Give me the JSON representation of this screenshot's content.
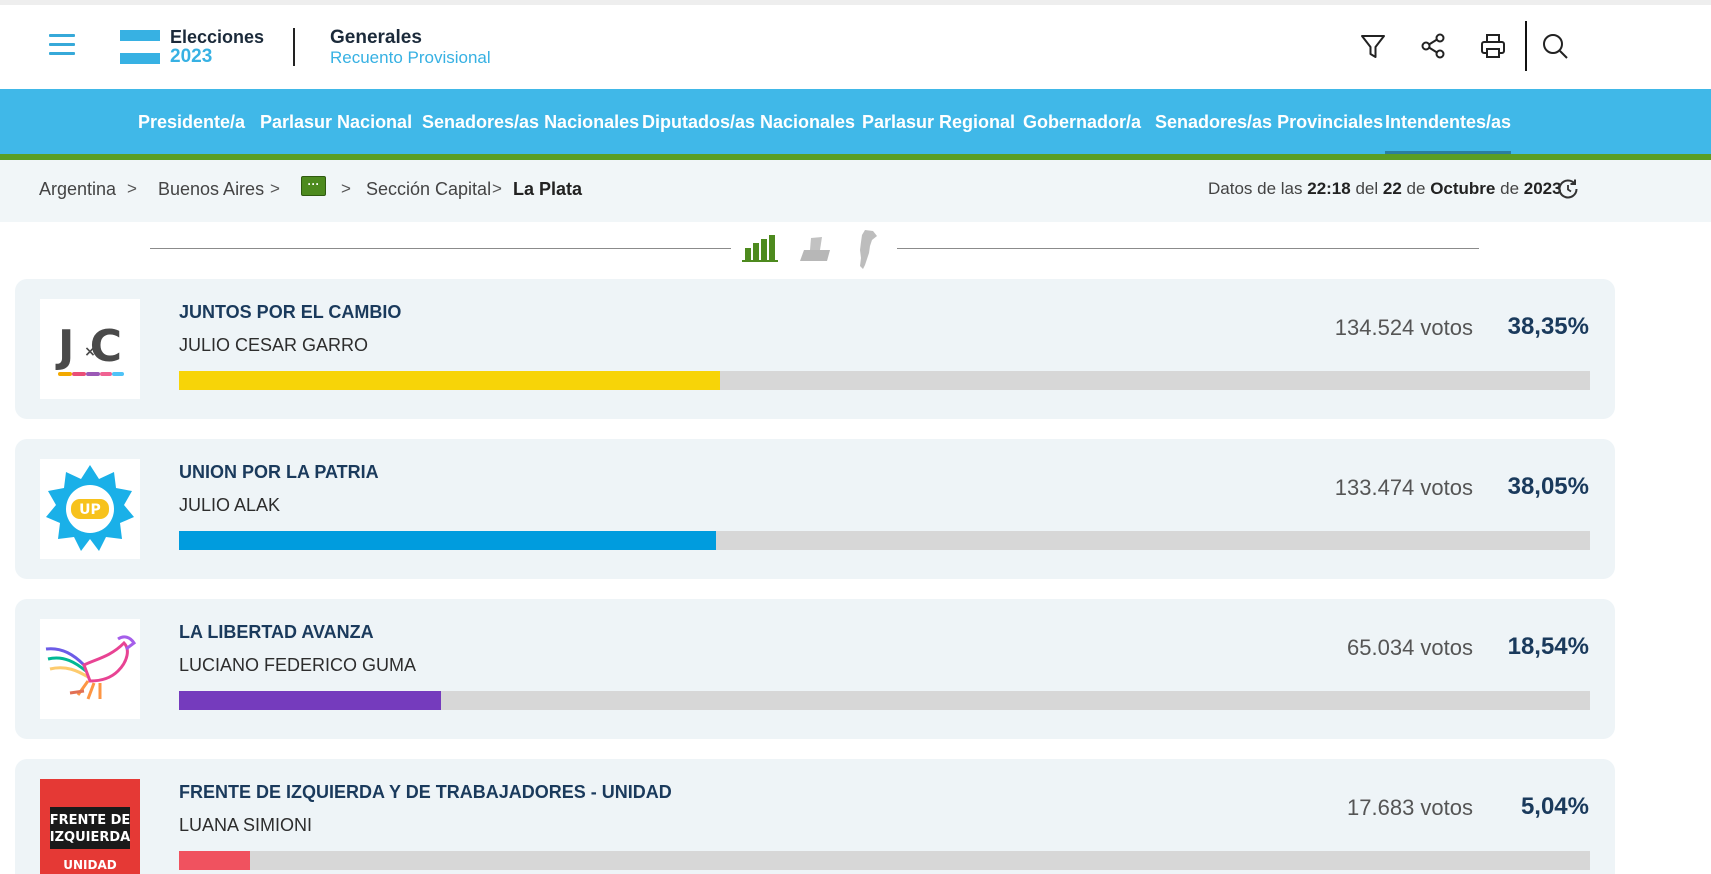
{
  "header": {
    "brand_title": "Elecciones",
    "brand_year": "2023",
    "section_title": "Generales",
    "section_subtitle": "Recuento Provisional",
    "icons": [
      "menu-icon",
      "filter-icon",
      "share-icon",
      "print-icon",
      "search-icon"
    ],
    "accent_color": "#37b1e3"
  },
  "nav": {
    "items": [
      {
        "label": "Presidente/a",
        "active": false
      },
      {
        "label": "Parlasur Nacional",
        "active": false
      },
      {
        "label": "Senadores/as Nacionales",
        "active": false
      },
      {
        "label": "Diputados/as Nacionales",
        "active": false
      },
      {
        "label": "Parlasur Regional",
        "active": false
      },
      {
        "label": "Gobernador/a",
        "active": false
      },
      {
        "label": "Senadores/as Provinciales",
        "active": false
      },
      {
        "label": "Intendentes/as",
        "active": true
      }
    ],
    "background_color": "#40b8e8",
    "underline_color": "#5a9e24"
  },
  "breadcrumb": {
    "items": [
      "Argentina",
      "Buenos Aires",
      "Sección Capital",
      "La Plata"
    ],
    "separator": ">",
    "more_label": "···"
  },
  "updated": {
    "prefix": "Datos de las",
    "time": "22:18",
    "del": "del",
    "day": "22",
    "de1": "de",
    "month": "Octubre",
    "de2": "de",
    "year": "2023"
  },
  "view_switcher": {
    "icons": [
      "bar-chart-icon",
      "ballot-box-icon",
      "argentina-map-icon"
    ],
    "active": "bar-chart-icon"
  },
  "results": [
    {
      "party": "JUNTOS POR EL CAMBIO",
      "candidate": "JULIO CESAR GARRO",
      "votes": "134.524 votos",
      "percent": "38,35%",
      "share": 38.35,
      "color": "#f7d408",
      "logo": "jxc-logo"
    },
    {
      "party": "UNION POR LA PATRIA",
      "candidate": "JULIO ALAK",
      "votes": "133.474 votos",
      "percent": "38,05%",
      "share": 38.05,
      "color": "#009cde",
      "logo": "up-logo"
    },
    {
      "party": "LA LIBERTAD AVANZA",
      "candidate": "LUCIANO FEDERICO GUMA",
      "votes": "65.034 votos",
      "percent": "18,54%",
      "share": 18.54,
      "color": "#753bbd",
      "logo": "lla-logo"
    },
    {
      "party": "FRENTE DE IZQUIERDA Y DE TRABAJADORES - UNIDAD",
      "candidate": "LUANA SIMIONI",
      "votes": "17.683 votos",
      "percent": "5,04%",
      "share": 5.04,
      "color": "#f0525f",
      "logo": "fit-logo",
      "logo_text": [
        "FRENTE DE",
        "IZQUIERDA",
        "UNIDAD"
      ]
    }
  ]
}
